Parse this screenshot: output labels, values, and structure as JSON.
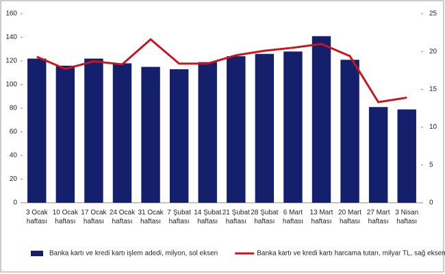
{
  "chart_data": {
    "type": "bar-line",
    "categories": [
      "3 Ocak haftası",
      "10 Ocak haftası",
      "17 Ocak haftası",
      "24 Ocak haftası",
      "31 Ocak haftası",
      "7 Şubat haftası",
      "14 Şubat haftası",
      "21 Şubat haftası",
      "28 Şubat haftası",
      "6 Mart haftası",
      "13 Mart haftası",
      "20 Mart haftası",
      "27 Mart haftası",
      "3 Nisan haftası"
    ],
    "series": [
      {
        "name": "Banka kartı ve kredi kartı işlem adedi, milyon, sol eksen",
        "type": "bar",
        "color": "#14206b",
        "values": [
          122,
          116,
          122,
          118,
          115,
          113,
          119,
          124,
          126,
          128,
          141,
          121,
          81,
          79
        ]
      },
      {
        "name": "Banka kartı ve kredi kartı harcama tutarı, milyar TL, sağ eksen",
        "type": "line",
        "axis": "y2",
        "color": "#c8141e",
        "values": [
          19.3,
          17.7,
          18.7,
          18.3,
          21.6,
          18.4,
          18.4,
          19.5,
          20.1,
          20.5,
          21.0,
          19.4,
          13.3,
          13.9
        ]
      }
    ],
    "ylim": [
      0,
      160
    ],
    "yticks": [
      0,
      20,
      40,
      60,
      80,
      100,
      120,
      140,
      160
    ],
    "y2lim": [
      0,
      25
    ],
    "y2ticks": [
      0,
      5,
      10,
      15,
      20,
      25
    ],
    "legend": "bottom"
  }
}
